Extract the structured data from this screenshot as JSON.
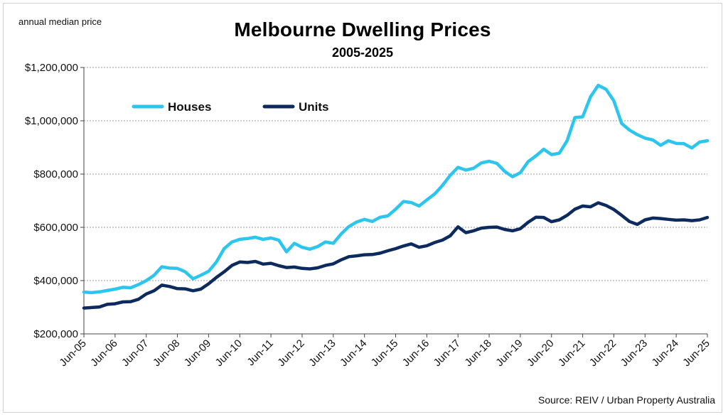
{
  "chart_data": {
    "type": "line",
    "title": "Melbourne Dwelling Prices",
    "subtitle": "2005-2025",
    "ylabel": "annual median price",
    "source": "Source: REIV / Urban Property Australia",
    "ylim": [
      200000,
      1200000
    ],
    "y_ticks": [
      {
        "value": 200000,
        "label": "$200,000"
      },
      {
        "value": 400000,
        "label": "$400,000"
      },
      {
        "value": 600000,
        "label": "$600,000"
      },
      {
        "value": 800000,
        "label": "$800,000"
      },
      {
        "value": 1000000,
        "label": "$1,000,000"
      },
      {
        "value": 1200000,
        "label": "$1,200,000"
      }
    ],
    "x_ticks": [
      "Jun-05",
      "Jun-06",
      "Jun-07",
      "Jun-08",
      "Jun-09",
      "Jun-10",
      "Jun-11",
      "Jun-12",
      "Jun-13",
      "Jun-14",
      "Jun-15",
      "Jun-16",
      "Jun-17",
      "Jun-18",
      "Jun-19",
      "Jun-20",
      "Jun-21",
      "Jun-22",
      "Jun-23",
      "Jun-24",
      "Jun-25"
    ],
    "x_range": [
      2005.5,
      2025.5
    ],
    "grid": "horizontal",
    "legend": "top-left",
    "series": [
      {
        "name": "Houses",
        "color": "#2cc5ee",
        "points": [
          [
            2005.5,
            357000
          ],
          [
            2005.75,
            355000
          ],
          [
            2006.0,
            358000
          ],
          [
            2006.25,
            363000
          ],
          [
            2006.5,
            368000
          ],
          [
            2006.75,
            375000
          ],
          [
            2007.0,
            373000
          ],
          [
            2007.25,
            385000
          ],
          [
            2007.5,
            400000
          ],
          [
            2007.75,
            420000
          ],
          [
            2008.0,
            452000
          ],
          [
            2008.25,
            447000
          ],
          [
            2008.5,
            446000
          ],
          [
            2008.75,
            433000
          ],
          [
            2009.0,
            407000
          ],
          [
            2009.25,
            420000
          ],
          [
            2009.5,
            435000
          ],
          [
            2009.75,
            470000
          ],
          [
            2010.0,
            520000
          ],
          [
            2010.25,
            545000
          ],
          [
            2010.5,
            555000
          ],
          [
            2010.75,
            558000
          ],
          [
            2011.0,
            563000
          ],
          [
            2011.25,
            555000
          ],
          [
            2011.5,
            560000
          ],
          [
            2011.75,
            552000
          ],
          [
            2012.0,
            508000
          ],
          [
            2012.25,
            540000
          ],
          [
            2012.5,
            525000
          ],
          [
            2012.75,
            518000
          ],
          [
            2013.0,
            528000
          ],
          [
            2013.25,
            545000
          ],
          [
            2013.5,
            540000
          ],
          [
            2013.75,
            575000
          ],
          [
            2014.0,
            603000
          ],
          [
            2014.25,
            620000
          ],
          [
            2014.5,
            630000
          ],
          [
            2014.75,
            622000
          ],
          [
            2015.0,
            638000
          ],
          [
            2015.25,
            643000
          ],
          [
            2015.5,
            668000
          ],
          [
            2015.75,
            697000
          ],
          [
            2016.0,
            693000
          ],
          [
            2016.25,
            680000
          ],
          [
            2016.5,
            703000
          ],
          [
            2016.75,
            725000
          ],
          [
            2017.0,
            757000
          ],
          [
            2017.25,
            795000
          ],
          [
            2017.5,
            825000
          ],
          [
            2017.75,
            815000
          ],
          [
            2018.0,
            822000
          ],
          [
            2018.25,
            842000
          ],
          [
            2018.5,
            848000
          ],
          [
            2018.75,
            840000
          ],
          [
            2019.0,
            810000
          ],
          [
            2019.25,
            790000
          ],
          [
            2019.5,
            805000
          ],
          [
            2019.75,
            847000
          ],
          [
            2020.0,
            868000
          ],
          [
            2020.25,
            893000
          ],
          [
            2020.5,
            873000
          ],
          [
            2020.75,
            878000
          ],
          [
            2021.0,
            925000
          ],
          [
            2021.25,
            1012000
          ],
          [
            2021.5,
            1015000
          ],
          [
            2021.75,
            1090000
          ],
          [
            2022.0,
            1133000
          ],
          [
            2022.25,
            1118000
          ],
          [
            2022.5,
            1075000
          ],
          [
            2022.75,
            990000
          ],
          [
            2023.0,
            965000
          ],
          [
            2023.25,
            948000
          ],
          [
            2023.5,
            935000
          ],
          [
            2023.75,
            928000
          ],
          [
            2024.0,
            908000
          ],
          [
            2024.25,
            925000
          ],
          [
            2024.5,
            915000
          ],
          [
            2024.75,
            914000
          ],
          [
            2025.0,
            898000
          ],
          [
            2025.25,
            920000
          ],
          [
            2025.5,
            925000
          ]
        ]
      },
      {
        "name": "Units",
        "color": "#0d2a5f",
        "points": [
          [
            2005.5,
            297000
          ],
          [
            2005.75,
            299000
          ],
          [
            2006.0,
            301000
          ],
          [
            2006.25,
            311000
          ],
          [
            2006.5,
            313000
          ],
          [
            2006.75,
            320000
          ],
          [
            2007.0,
            321000
          ],
          [
            2007.25,
            330000
          ],
          [
            2007.5,
            350000
          ],
          [
            2007.75,
            362000
          ],
          [
            2008.0,
            383000
          ],
          [
            2008.25,
            378000
          ],
          [
            2008.5,
            370000
          ],
          [
            2008.75,
            369000
          ],
          [
            2009.0,
            362000
          ],
          [
            2009.25,
            368000
          ],
          [
            2009.5,
            388000
          ],
          [
            2009.75,
            412000
          ],
          [
            2010.0,
            433000
          ],
          [
            2010.25,
            457000
          ],
          [
            2010.5,
            470000
          ],
          [
            2010.75,
            468000
          ],
          [
            2011.0,
            472000
          ],
          [
            2011.25,
            462000
          ],
          [
            2011.5,
            465000
          ],
          [
            2011.75,
            456000
          ],
          [
            2012.0,
            449000
          ],
          [
            2012.25,
            451000
          ],
          [
            2012.5,
            446000
          ],
          [
            2012.75,
            444000
          ],
          [
            2013.0,
            448000
          ],
          [
            2013.25,
            457000
          ],
          [
            2013.5,
            463000
          ],
          [
            2013.75,
            478000
          ],
          [
            2014.0,
            490000
          ],
          [
            2014.25,
            493000
          ],
          [
            2014.5,
            497000
          ],
          [
            2014.75,
            498000
          ],
          [
            2015.0,
            503000
          ],
          [
            2015.25,
            512000
          ],
          [
            2015.5,
            520000
          ],
          [
            2015.75,
            530000
          ],
          [
            2016.0,
            538000
          ],
          [
            2016.25,
            525000
          ],
          [
            2016.5,
            531000
          ],
          [
            2016.75,
            543000
          ],
          [
            2017.0,
            552000
          ],
          [
            2017.25,
            568000
          ],
          [
            2017.5,
            602000
          ],
          [
            2017.75,
            580000
          ],
          [
            2018.0,
            587000
          ],
          [
            2018.25,
            597000
          ],
          [
            2018.5,
            600000
          ],
          [
            2018.75,
            601000
          ],
          [
            2019.0,
            592000
          ],
          [
            2019.25,
            587000
          ],
          [
            2019.5,
            595000
          ],
          [
            2019.75,
            619000
          ],
          [
            2020.0,
            638000
          ],
          [
            2020.25,
            637000
          ],
          [
            2020.5,
            621000
          ],
          [
            2020.75,
            628000
          ],
          [
            2021.0,
            645000
          ],
          [
            2021.25,
            668000
          ],
          [
            2021.5,
            680000
          ],
          [
            2021.75,
            677000
          ],
          [
            2022.0,
            692000
          ],
          [
            2022.25,
            682000
          ],
          [
            2022.5,
            667000
          ],
          [
            2022.75,
            645000
          ],
          [
            2023.0,
            622000
          ],
          [
            2023.25,
            611000
          ],
          [
            2023.5,
            628000
          ],
          [
            2023.75,
            635000
          ],
          [
            2024.0,
            633000
          ],
          [
            2024.25,
            630000
          ],
          [
            2024.5,
            627000
          ],
          [
            2024.75,
            628000
          ],
          [
            2025.0,
            625000
          ],
          [
            2025.25,
            628000
          ],
          [
            2025.5,
            637000
          ]
        ]
      }
    ]
  }
}
